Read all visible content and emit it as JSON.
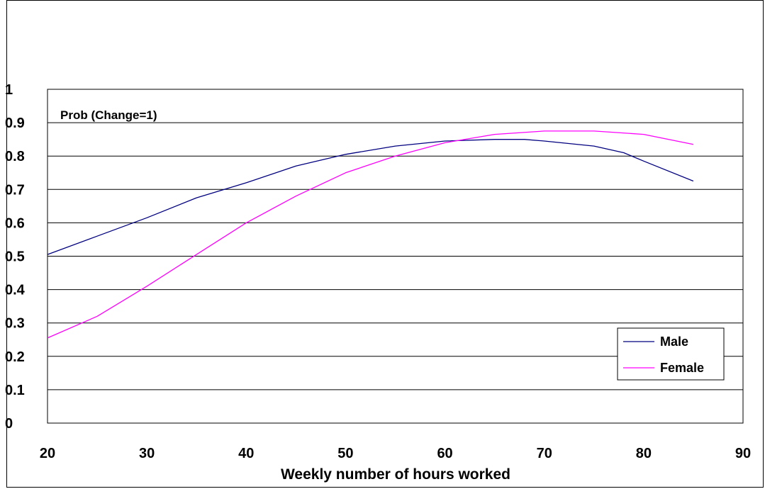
{
  "chart_data": {
    "type": "line",
    "title": "",
    "xlabel": "Weekly number of hours worked",
    "ylabel": "",
    "annotation": "Prob (Change=1)",
    "xlim": [
      20,
      90
    ],
    "ylim": [
      0,
      1
    ],
    "xticks": [
      20,
      30,
      40,
      50,
      60,
      70,
      80,
      90
    ],
    "yticks": [
      0,
      0.1,
      0.2,
      0.3,
      0.4,
      0.5,
      0.6,
      0.7,
      0.8,
      0.9,
      1
    ],
    "xtick_labels": [
      "20",
      "30",
      "40",
      "50",
      "60",
      "70",
      "80",
      "90"
    ],
    "ytick_labels": [
      "0",
      "0.1",
      "0.2",
      "0.3",
      "0.4",
      "0.5",
      "0.6",
      "0.7",
      "0.8",
      "0.9",
      "1"
    ],
    "grid": "horizontal",
    "legend": "bottom-right",
    "series": [
      {
        "name": "Male",
        "color": "#000080",
        "x": [
          20,
          25,
          30,
          35,
          40,
          45,
          50,
          55,
          60,
          65,
          68,
          70,
          75,
          78,
          80,
          85
        ],
        "y": [
          0.505,
          0.56,
          0.615,
          0.675,
          0.72,
          0.77,
          0.805,
          0.83,
          0.845,
          0.85,
          0.85,
          0.845,
          0.83,
          0.81,
          0.785,
          0.725
        ]
      },
      {
        "name": "Female",
        "color": "#FF00FF",
        "x": [
          20,
          25,
          30,
          35,
          40,
          45,
          50,
          55,
          60,
          65,
          70,
          75,
          80,
          85
        ],
        "y": [
          0.255,
          0.32,
          0.41,
          0.505,
          0.6,
          0.68,
          0.75,
          0.8,
          0.84,
          0.865,
          0.875,
          0.875,
          0.865,
          0.835
        ]
      }
    ]
  }
}
